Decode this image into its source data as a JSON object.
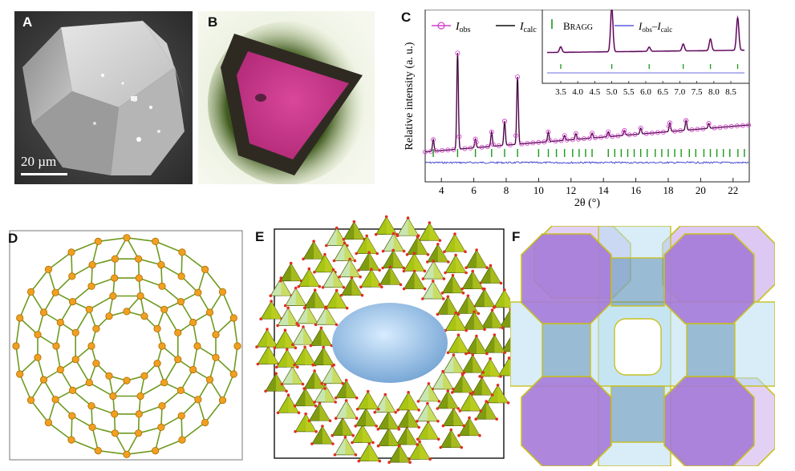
{
  "panels": {
    "A": {
      "label": "A",
      "scale_bar": "20 µm"
    },
    "B": {
      "label": "B"
    },
    "C": {
      "label": "C"
    },
    "D": {
      "label": "D"
    },
    "E": {
      "label": "E"
    },
    "F": {
      "label": "F"
    }
  },
  "chart_data": {
    "type": "line",
    "xlabel": "2θ (°)",
    "ylabel": "Relative intensity (a. u.)",
    "xlim": [
      3,
      23
    ],
    "x_ticks": [
      4,
      6,
      8,
      10,
      12,
      14,
      16,
      18,
      20,
      22
    ],
    "legend": {
      "position": "top-left",
      "entries": [
        "I_obs",
        "I_calc"
      ]
    },
    "series": [
      {
        "name": "I_obs",
        "style": "markers",
        "color": "#d040c8"
      },
      {
        "name": "I_calc",
        "style": "line",
        "color": "#111111"
      },
      {
        "name": "Bragg",
        "style": "ticks",
        "color": "#1a9a1a"
      },
      {
        "name": "I_obs − I_calc",
        "style": "line",
        "color": "#3a3ad0"
      }
    ],
    "peaks": [
      {
        "x": 3.5,
        "y": 0.12
      },
      {
        "x": 5.0,
        "y": 1.0
      },
      {
        "x": 6.1,
        "y": 0.09
      },
      {
        "x": 7.1,
        "y": 0.15
      },
      {
        "x": 7.9,
        "y": 0.25
      },
      {
        "x": 8.7,
        "y": 0.7
      },
      {
        "x": 10.6,
        "y": 0.1
      },
      {
        "x": 11.6,
        "y": 0.05
      },
      {
        "x": 12.3,
        "y": 0.06
      },
      {
        "x": 13.3,
        "y": 0.05
      },
      {
        "x": 14.3,
        "y": 0.05
      },
      {
        "x": 15.3,
        "y": 0.05
      },
      {
        "x": 16.3,
        "y": 0.06
      },
      {
        "x": 18.1,
        "y": 0.09
      },
      {
        "x": 19.1,
        "y": 0.1
      },
      {
        "x": 20.5,
        "y": 0.05
      }
    ],
    "background": {
      "start": 0.02,
      "end": 0.3
    },
    "bragg_positions": [
      3.5,
      5.0,
      6.1,
      7.1,
      7.9,
      8.7,
      10.0,
      10.6,
      11.1,
      11.6,
      12.1,
      12.5,
      12.9,
      13.3,
      14.3,
      14.7,
      15.1,
      15.5,
      15.9,
      16.3,
      16.7,
      17.2,
      17.6,
      18.0,
      18.4,
      18.8,
      19.3,
      19.7,
      20.2,
      20.6,
      21.0,
      21.4,
      21.8,
      22.3,
      22.7
    ],
    "inset": {
      "legend_entries": [
        "BRAGG",
        "I_obs−I_calc"
      ],
      "xlim": [
        3.1,
        8.9
      ],
      "x_ticks": [
        3.5,
        4.0,
        4.5,
        5.0,
        5.5,
        6.0,
        6.5,
        7.0,
        7.5,
        8.0,
        8.5
      ]
    }
  }
}
